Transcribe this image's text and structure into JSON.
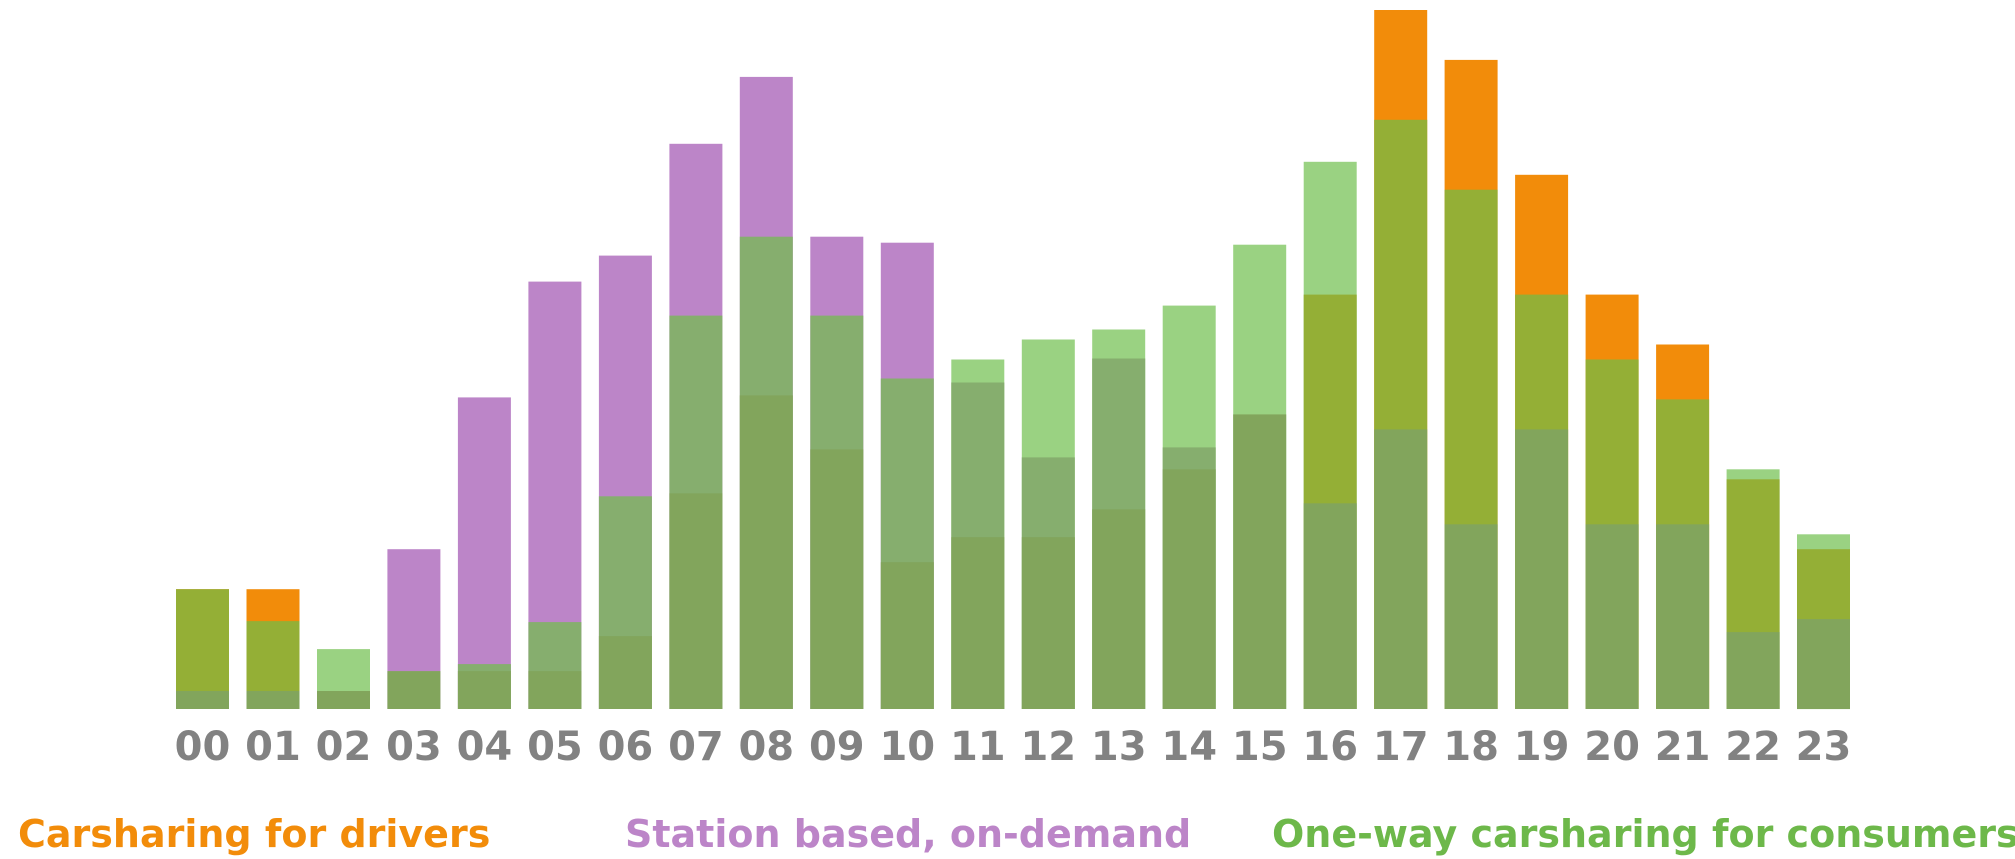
{
  "colors": {
    "orange": "#F28C0A",
    "purple": "#BC85C8",
    "light_green": "#9AD282",
    "olive": "#94AF36",
    "mid_green": "#86AE6E",
    "base_green": "#82A55C",
    "tick_text": "#828282"
  },
  "chart_data": {
    "type": "bar",
    "stacking": "overlapping",
    "ylim": [
      0,
      700
    ],
    "grid": false,
    "legend_placement": "bottom",
    "categories": [
      "00",
      "01",
      "02",
      "03",
      "04",
      "05",
      "06",
      "07",
      "08",
      "09",
      "10",
      "11",
      "12",
      "13",
      "14",
      "15",
      "16",
      "17",
      "18",
      "19",
      "20",
      "21",
      "22",
      "23"
    ],
    "series": [
      {
        "name": "Carsharing for drivers",
        "color": "#F28C0A",
        "values": [
          120,
          120,
          0,
          0,
          0,
          0,
          0,
          0,
          0,
          0,
          0,
          0,
          0,
          0,
          0,
          0,
          0,
          700,
          650,
          535,
          415,
          365,
          0,
          0
        ]
      },
      {
        "name": "Station based, on-demand",
        "color": "#BC85C8",
        "values": [
          0,
          0,
          0,
          160,
          312,
          428,
          454,
          566,
          633,
          473,
          467,
          0,
          0,
          0,
          0,
          0,
          0,
          0,
          0,
          0,
          0,
          0,
          0,
          0
        ]
      },
      {
        "name": "One-way carsharing for consumers",
        "color": "#9AD282",
        "values": [
          0,
          0,
          60,
          0,
          0,
          0,
          0,
          0,
          0,
          0,
          0,
          350,
          370,
          380,
          404,
          465,
          548,
          0,
          0,
          0,
          0,
          0,
          240,
          175
        ]
      }
    ],
    "overlays": [
      {
        "color": "#94AF36",
        "values": [
          120,
          88,
          0,
          0,
          0,
          0,
          0,
          0,
          0,
          0,
          0,
          0,
          0,
          0,
          0,
          0,
          415,
          590,
          520,
          415,
          350,
          310,
          230,
          160
        ]
      },
      {
        "color": "#86AE6E",
        "values": [
          0,
          0,
          0,
          0,
          45,
          87,
          213,
          394,
          473,
          394,
          331,
          327,
          252,
          351,
          262,
          0,
          0,
          0,
          0,
          0,
          0,
          0,
          0,
          0
        ]
      },
      {
        "color": "#82A55C",
        "values": [
          18,
          18,
          18,
          38,
          38,
          38,
          73,
          216,
          314,
          260,
          147,
          172,
          172,
          200,
          240,
          295,
          206,
          280,
          185,
          280,
          185,
          185,
          77,
          90
        ]
      }
    ],
    "legend": [
      {
        "label": "Carsharing for drivers",
        "color": "#F28C0A"
      },
      {
        "label": "Station based, on-demand",
        "color": "#BC85C8"
      },
      {
        "label": "One-way carsharing for consumers",
        "color": "#6DB84A"
      }
    ]
  }
}
